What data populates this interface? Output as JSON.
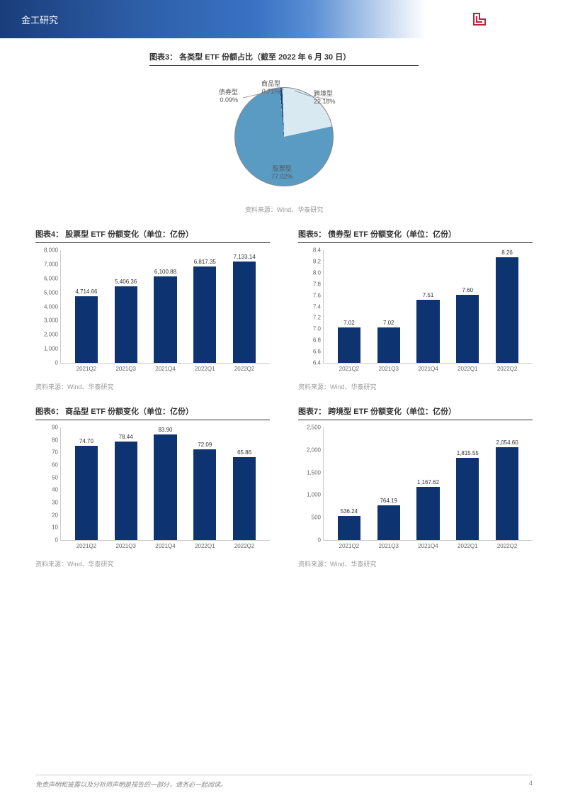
{
  "header": {
    "title": "金工研究",
    "logo_cn": "华泰证券",
    "logo_en": "HUATAI SECURITIES"
  },
  "pie": {
    "title": "图表3：  各类型 ETF 份额占比（截至 2022 年 6 月 30 日）",
    "source": "资料来源：Wind、华泰研究",
    "slices": [
      {
        "name": "股票型",
        "pct": "77.02%",
        "value": 77.02,
        "color": "#5a9bc4"
      },
      {
        "name": "跨境型",
        "pct": "22.18%",
        "value": 22.18,
        "color": "#d9e9f2"
      },
      {
        "name": "商品型",
        "pct": "0.71%",
        "value": 0.71,
        "color": "#1a3d7a"
      },
      {
        "name": "债券型",
        "pct": "0.09%",
        "value": 0.09,
        "color": "#c0d8e8"
      }
    ]
  },
  "charts": [
    {
      "title": "图表4：  股票型 ETF 份额变化（单位：亿份）",
      "source": "资料来源：Wind、华泰研究",
      "color": "#0d3370",
      "ymax": 8000,
      "ystep": 1000,
      "ymin": 0,
      "format": "comma0",
      "categories": [
        "2021Q2",
        "2021Q3",
        "2021Q4",
        "2022Q1",
        "2022Q2"
      ],
      "values": [
        4714.66,
        5406.36,
        6100.88,
        6817.35,
        7133.14
      ],
      "value_labels": [
        "4,714.66",
        "5,406.36",
        "6,100.88",
        "6,817.35",
        "7,133.14"
      ]
    },
    {
      "title": "图表5：  债券型 ETF 份额变化（单位：亿份）",
      "source": "资料来源：Wind、华泰研究",
      "color": "#0d3370",
      "ymax": 8.4,
      "ystep": 0.2,
      "ymin": 6.4,
      "format": "dec1",
      "categories": [
        "2021Q2",
        "2021Q3",
        "2021Q4",
        "2022Q1",
        "2022Q2"
      ],
      "values": [
        7.02,
        7.02,
        7.51,
        7.6,
        8.26
      ],
      "value_labels": [
        "7.02",
        "7.02",
        "7.51",
        "7.60",
        "8.26"
      ]
    },
    {
      "title": "图表6：  商品型 ETF 份额变化（单位：亿份）",
      "source": "资料来源：Wind、华泰研究",
      "color": "#0d3370",
      "ymax": 90,
      "ystep": 10,
      "ymin": 0,
      "format": "int",
      "categories": [
        "2021Q2",
        "2021Q3",
        "2021Q4",
        "2022Q1",
        "2022Q2"
      ],
      "values": [
        74.7,
        78.44,
        83.9,
        72.09,
        65.86
      ],
      "value_labels": [
        "74.70",
        "78.44",
        "83.90",
        "72.09",
        "65.86"
      ]
    },
    {
      "title": "图表7：  跨境型 ETF 份额变化（单位：亿份）",
      "source": "资料来源：Wind、华泰研究",
      "color": "#0d3370",
      "ymax": 2500,
      "ystep": 500,
      "ymin": 0,
      "format": "comma0",
      "categories": [
        "2021Q2",
        "2021Q3",
        "2021Q4",
        "2022Q1",
        "2022Q2"
      ],
      "values": [
        536.24,
        764.19,
        1167.62,
        1815.55,
        2054.6
      ],
      "value_labels": [
        "536.24",
        "764.19",
        "1,167.62",
        "1,815.55",
        "2,054.60"
      ]
    }
  ],
  "footer": {
    "disclaimer": "免责声明和披露以及分析师声明是报告的一部分，请务必一起阅读。",
    "page": "4"
  }
}
